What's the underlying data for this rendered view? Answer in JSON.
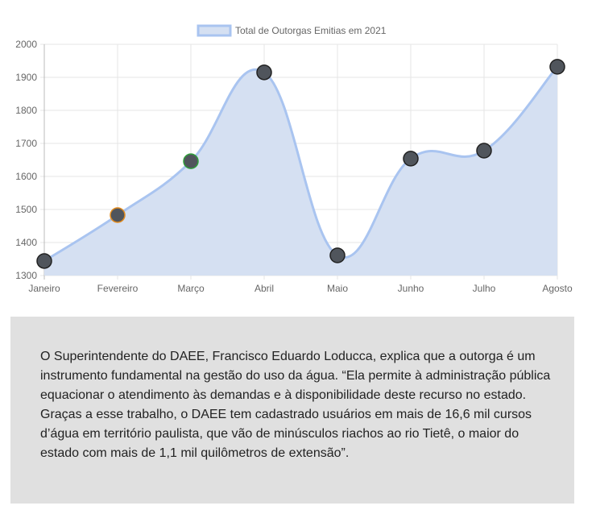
{
  "chart_data": {
    "type": "line",
    "filled": true,
    "categories": [
      "Janeiro",
      "Fevereiro",
      "Março",
      "Abril",
      "Maio",
      "Junho",
      "Julho",
      "Agosto"
    ],
    "series": [
      {
        "name": "Total de Outorgas Emitias em 2021",
        "values": [
          1344,
          1483,
          1646,
          1915,
          1361,
          1654,
          1678,
          1932
        ]
      }
    ],
    "ylim": [
      1300,
      2000
    ],
    "yticks": [
      1300,
      1400,
      1500,
      1600,
      1700,
      1800,
      1900,
      2000
    ],
    "grid": true,
    "legend": "top",
    "colors": {
      "line": "#a9c4f0",
      "fill": "#d5e0f2",
      "point": "#50555c",
      "point_border": "#222222",
      "feb_border": "#e08a1e",
      "mar_border": "#2f9e3a"
    }
  },
  "article": {
    "text": "O Superintendente do DAEE, Francisco Eduardo Loducca, explica que a outorga é um instrumento fundamental na gestão do uso da água. “Ela permite à administração pública equacionar o atendimento às demandas e à disponibilidade deste recurso no estado. Graças a esse trabalho, o DAEE tem cadastrado usuários em mais de 16,6 mil cursos d’água em território paulista, que vão de minúsculos riachos ao rio Tietê, o maior do estado com mais de 1,1 mil quilômetros de extensão”."
  }
}
